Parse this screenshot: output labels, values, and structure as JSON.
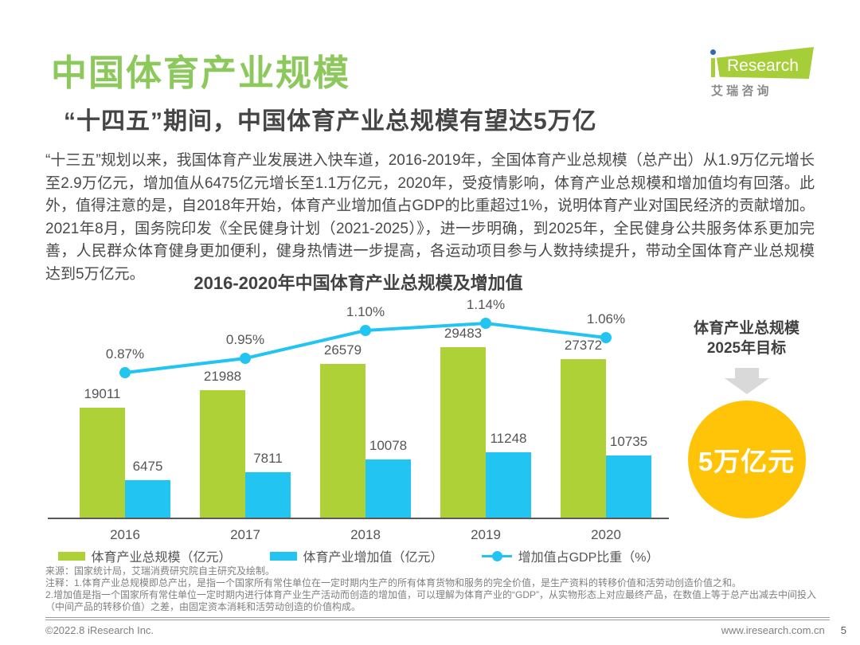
{
  "page": {
    "title": "中国体育产业规模",
    "subtitle": "“十四五”期间，中国体育产业总规模有望达5万亿",
    "body": "“十三五”规划以来，我国体育产业发展进入快车道，2016-2019年，全国体育产业总规模（总产出）从1.9万亿元增长至2.9万亿元，增加值从6475亿元增长至1.1万亿元，2020年，受疫情影响，体育产业总规模和增加值均有回落。此外，值得注意的是，自2018年开始，体育产业增加值占GDP的比重超过1%，说明体育产业对国民经济的贡献增加。2021年8月，国务院印发《全民健身计划（2021-2025）》，进一步明确，到2025年，全民健身公共服务体系更加完善，人民群众体育健身更加便利，健身热情进一步提高，各运动项目参与人数持续提升，带动全国体育产业总规模达到5万亿元。",
    "page_number": "5"
  },
  "logo": {
    "brand_i": "i",
    "brand": "Research",
    "tagline_chars": "艾 瑞 咨 询",
    "green": "#A6CE39",
    "dot_blue": "#2E6DB4"
  },
  "colors": {
    "title_green": "#8CC85C",
    "bar_green": "#ADD136",
    "cyan": "#22C4F2",
    "circle_yellow": "#FFC407",
    "arrow_gray": "#D9D9D9",
    "axis_gray": "#595959"
  },
  "chart_data": {
    "type": "bar",
    "title": "2016-2020年中国体育产业总规模及增加值",
    "categories": [
      "2016",
      "2017",
      "2018",
      "2019",
      "2020"
    ],
    "series": [
      {
        "name": "体育产业总规模（亿元）",
        "type": "bar",
        "color": "#ADD136",
        "values": [
          19011,
          21988,
          26579,
          29483,
          27372
        ]
      },
      {
        "name": "体育产业增加值（亿元）",
        "type": "bar",
        "color": "#22C4F2",
        "values": [
          6475,
          7811,
          10078,
          11248,
          10735
        ]
      },
      {
        "name": "增加值占GDP比重（%）",
        "type": "line",
        "color": "#22C4F2",
        "values": [
          0.87,
          0.95,
          1.1,
          1.14,
          1.06
        ],
        "labels": [
          "0.87%",
          "0.95%",
          "1.10%",
          "1.14%",
          "1.06%"
        ]
      }
    ],
    "legend_position": "bottom",
    "y_axis": "hidden",
    "grid": false
  },
  "target_panel": {
    "title_line1": "体育产业总规模",
    "title_line2": "2025年目标",
    "circle_label": "5万亿元",
    "circle_color": "#FFC407",
    "arrow_color": "#D9D9D9"
  },
  "footer": {
    "source": "来源：国家统计局，艾瑞消费研究院自主研究及绘制。",
    "note1": "注释：1.体育产业总规模即总产出，是指一个国家所有常住单位在一定时期内生产的所有体育货物和服务的完全价值，是生产资料的转移价值和活劳动创造价值之和。",
    "note2": "2.增加值是指一个国家所有常住单位一定时期内进行体育产业生产活动而创造的增加值，可以理解为体育产业的“GDP”，从实物形态上对应最终产品，在数值上等于总产出减去中间投入（中间产品的转移价值）之差，由固定资本消耗和活劳动创造的价值构成。",
    "copyright": "©2022.8 iResearch Inc.",
    "website": "www.iresearch.com.cn"
  }
}
